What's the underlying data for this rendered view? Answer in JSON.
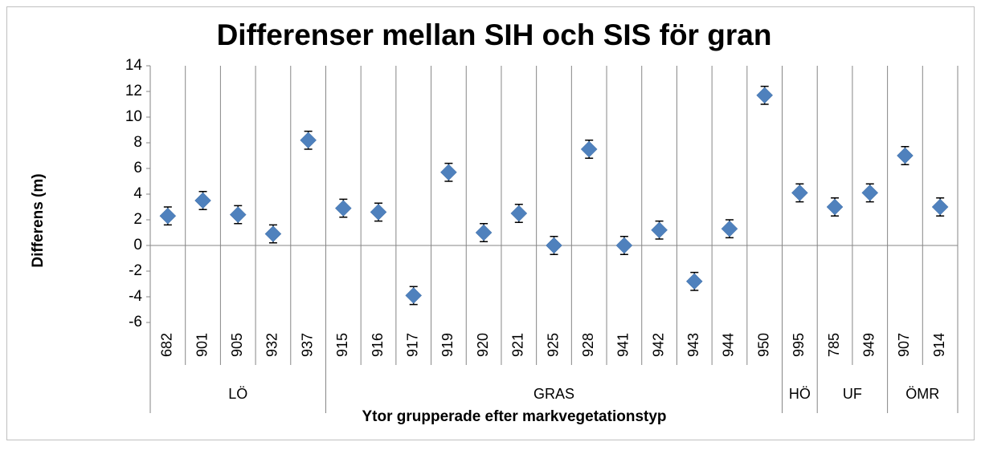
{
  "chart_data": {
    "type": "scatter",
    "title": "Differenser mellan SIH och SIS för gran",
    "y_label": "Differens (m)",
    "x_label": "Ytor grupperade efter markvegetationstyp",
    "groups": [
      {
        "label": "LÖ",
        "categories": [
          "682",
          "901",
          "905",
          "932",
          "937"
        ]
      },
      {
        "label": "GRAS",
        "categories": [
          "915",
          "916",
          "917",
          "919",
          "920",
          "921",
          "925",
          "928",
          "941",
          "942",
          "943",
          "944",
          "950"
        ]
      },
      {
        "label": "HÖ",
        "categories": [
          "995"
        ]
      },
      {
        "label": "UF",
        "categories": [
          "785",
          "949"
        ]
      },
      {
        "label": "ÖMR",
        "categories": [
          "907",
          "914"
        ]
      }
    ],
    "values": [
      2.3,
      3.5,
      2.4,
      0.9,
      8.2,
      2.9,
      2.6,
      -3.9,
      5.7,
      1.0,
      2.5,
      0.0,
      7.5,
      0.0,
      1.2,
      -2.8,
      1.3,
      11.7,
      4.1,
      3.0,
      4.1,
      7.0,
      3.0
    ],
    "errors": [
      0.7,
      0.7,
      0.7,
      0.7,
      0.7,
      0.7,
      0.7,
      0.7,
      0.7,
      0.7,
      0.7,
      0.7,
      0.7,
      0.7,
      0.7,
      0.7,
      0.7,
      0.7,
      0.7,
      0.7,
      0.7,
      0.7,
      0.7
    ],
    "color": "#4f81bd",
    "ylim": [
      -6,
      14
    ],
    "yticks": [
      -6,
      -4,
      -2,
      0,
      2,
      4,
      6,
      8,
      10,
      12,
      14
    ]
  }
}
